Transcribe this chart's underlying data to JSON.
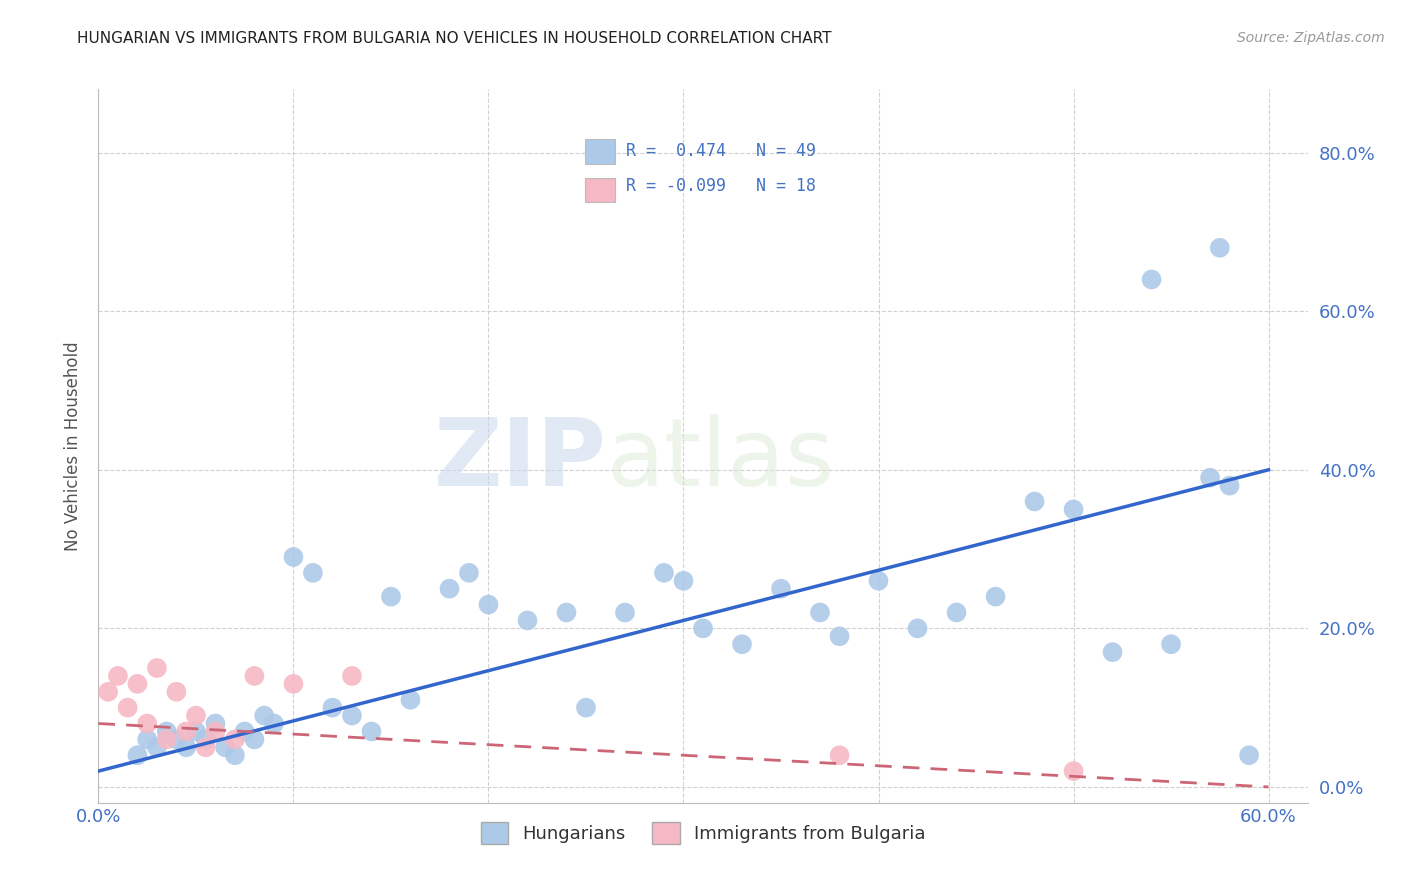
{
  "title": "HUNGARIAN VS IMMIGRANTS FROM BULGARIA NO VEHICLES IN HOUSEHOLD CORRELATION CHART",
  "source": "Source: ZipAtlas.com",
  "ylabel": "No Vehicles in Household",
  "xlim": [
    0.0,
    0.62
  ],
  "ylim": [
    -0.02,
    0.88
  ],
  "xticks": [
    0.0,
    0.1,
    0.2,
    0.3,
    0.4,
    0.5,
    0.6
  ],
  "yticks": [
    0.0,
    0.2,
    0.4,
    0.6,
    0.8
  ],
  "ytick_labels": [
    "0.0%",
    "20.0%",
    "40.0%",
    "60.0%",
    "80.0%"
  ],
  "xtick_labels": [
    "0.0%",
    "",
    "",
    "",
    "",
    "",
    "60.0%"
  ],
  "blue_R": 0.474,
  "blue_N": 49,
  "pink_R": -0.099,
  "pink_N": 18,
  "blue_color": "#adc9e8",
  "pink_color": "#f5b8c4",
  "blue_line_color": "#3366cc",
  "pink_line_color": "#cc6677",
  "watermark_zip": "ZIP",
  "watermark_atlas": "atlas",
  "blue_scatter_x": [
    0.02,
    0.025,
    0.03,
    0.035,
    0.04,
    0.045,
    0.05,
    0.055,
    0.06,
    0.065,
    0.07,
    0.075,
    0.08,
    0.085,
    0.09,
    0.1,
    0.11,
    0.12,
    0.13,
    0.14,
    0.15,
    0.16,
    0.18,
    0.19,
    0.2,
    0.22,
    0.24,
    0.25,
    0.27,
    0.29,
    0.3,
    0.31,
    0.33,
    0.35,
    0.37,
    0.38,
    0.4,
    0.42,
    0.44,
    0.46,
    0.48,
    0.5,
    0.52,
    0.54,
    0.55,
    0.57,
    0.575,
    0.58,
    0.59
  ],
  "blue_scatter_y": [
    0.04,
    0.06,
    0.05,
    0.07,
    0.06,
    0.05,
    0.07,
    0.06,
    0.08,
    0.05,
    0.04,
    0.07,
    0.06,
    0.09,
    0.08,
    0.29,
    0.27,
    0.1,
    0.09,
    0.07,
    0.24,
    0.11,
    0.25,
    0.27,
    0.23,
    0.21,
    0.22,
    0.1,
    0.22,
    0.27,
    0.26,
    0.2,
    0.18,
    0.25,
    0.22,
    0.19,
    0.26,
    0.2,
    0.22,
    0.24,
    0.36,
    0.35,
    0.17,
    0.64,
    0.18,
    0.39,
    0.68,
    0.38,
    0.04
  ],
  "pink_scatter_x": [
    0.005,
    0.01,
    0.015,
    0.02,
    0.025,
    0.03,
    0.035,
    0.04,
    0.045,
    0.05,
    0.055,
    0.06,
    0.07,
    0.08,
    0.1,
    0.13,
    0.38,
    0.5
  ],
  "pink_scatter_y": [
    0.12,
    0.14,
    0.1,
    0.13,
    0.08,
    0.15,
    0.06,
    0.12,
    0.07,
    0.09,
    0.05,
    0.07,
    0.06,
    0.14,
    0.13,
    0.14,
    0.04,
    0.02
  ],
  "blue_line_x": [
    0.0,
    0.6
  ],
  "blue_line_y_start": 0.02,
  "blue_line_y_end": 0.4,
  "pink_line_x": [
    0.0,
    0.6
  ],
  "pink_line_y_start": 0.08,
  "pink_line_y_end": 0.0
}
